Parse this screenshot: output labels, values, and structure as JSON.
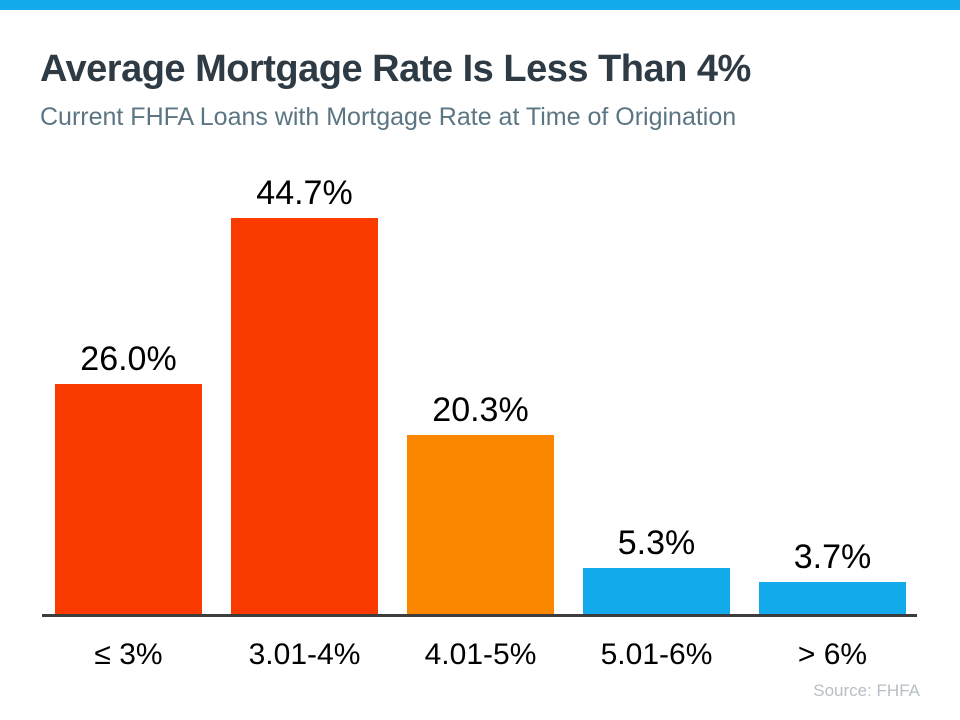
{
  "page": {
    "background_color": "#ffffff",
    "accent_strip_color": "#13aaeb"
  },
  "header": {
    "title": "Average Mortgage Rate Is Less Than 4%",
    "subtitle": "Current FHFA Loans with Mortgage Rate at Time of Origination",
    "title_color": "#2e3b45",
    "subtitle_color": "#5b7583"
  },
  "chart_data": {
    "type": "bar",
    "title": "Average Mortgage Rate Is Less Than 4%",
    "subtitle": "Current FHFA Loans with Mortgage Rate at Time of Origination",
    "categories": [
      "≤ 3%",
      "3.01-4%",
      "4.01-5%",
      "5.01-6%",
      "> 6%"
    ],
    "values": [
      26.0,
      44.7,
      20.3,
      5.3,
      3.7
    ],
    "value_labels": [
      "26.0%",
      "44.7%",
      "20.3%",
      "5.3%",
      "3.7%"
    ],
    "bar_colors": [
      "#fb3a00",
      "#fb3a00",
      "#fb8600",
      "#13aaeb",
      "#13aaeb"
    ],
    "xlabel": "",
    "ylabel": "",
    "ylim": [
      0,
      50
    ],
    "grid": false,
    "legend_position": "none",
    "axis_line_color": "#3d3d3d",
    "value_label_color": "#000000",
    "category_label_color": "#000000"
  },
  "footer": {
    "source": "Source: FHFA",
    "source_color": "#b6bfc6"
  }
}
